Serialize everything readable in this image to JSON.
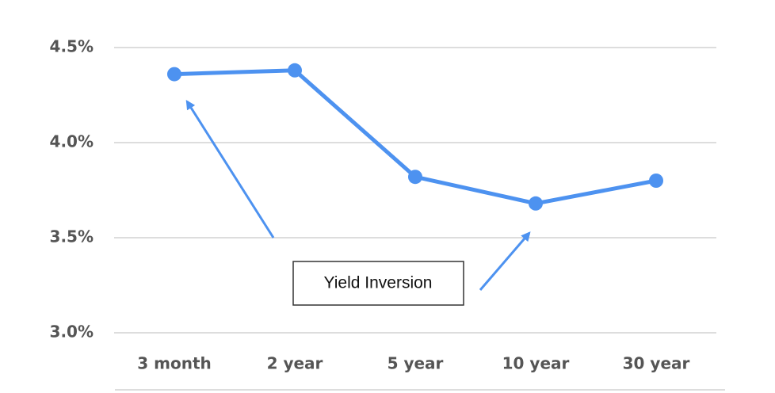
{
  "chart_data": {
    "type": "line",
    "categories": [
      "3 month",
      "2 year",
      "5 year",
      "10 year",
      "30 year"
    ],
    "series": [
      {
        "color": "#4d92f0",
        "values": [
          4.36,
          4.38,
          3.82,
          3.68,
          3.8
        ]
      }
    ],
    "ylim": [
      3.0,
      4.5
    ],
    "yticks": [
      {
        "value": 3.0,
        "label": "3.0%"
      },
      {
        "value": 3.5,
        "label": "3.5%"
      },
      {
        "value": 4.0,
        "label": "4.0%"
      },
      {
        "value": 4.5,
        "label": "4.5%"
      }
    ],
    "grid": true,
    "annotation": "Yield Inversion"
  }
}
